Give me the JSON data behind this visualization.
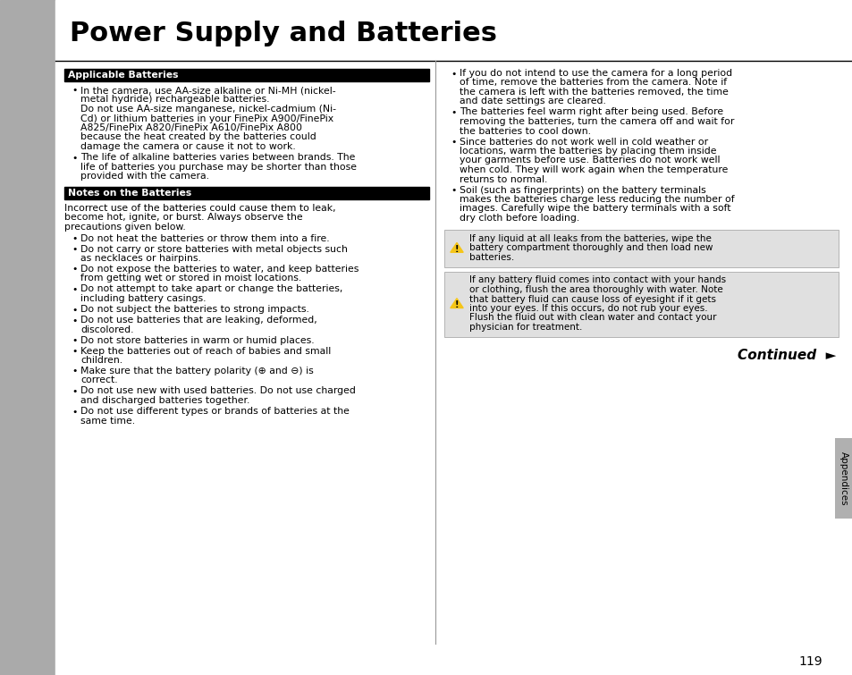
{
  "title": "Power Supply and Batteries",
  "page_number": "119",
  "bg_color": "#ffffff",
  "section1_header": "Applicable Batteries",
  "section2_header": "Notes on the Batteries",
  "tab_label": "Appendices",
  "section1_bullets": [
    "In the camera, use AA-size alkaline or Ni-MH (nickel-\nmetal hydride) rechargeable batteries.\nDo not use AA-size manganese, nickel-cadmium (Ni-\nCd) or lithium batteries in your FinePix A900/FinePix\nA825/FinePix A820/FinePix A610/FinePix A800\nbecause the heat created by the batteries could\ndamage the camera or cause it not to work.",
    "The life of alkaline batteries varies between brands. The\nlife of batteries you purchase may be shorter than those\nprovided with the camera."
  ],
  "section2_intro": "Incorrect use of the batteries could cause them to leak,\nbecome hot, ignite, or burst. Always observe the\nprecautions given below.",
  "section2_bullets": [
    "Do not heat the batteries or throw them into a fire.",
    "Do not carry or store batteries with metal objects such\nas necklaces or hairpins.",
    "Do not expose the batteries to water, and keep batteries\nfrom getting wet or stored in moist locations.",
    "Do not attempt to take apart or change the batteries,\nincluding battery casings.",
    "Do not subject the batteries to strong impacts.",
    "Do not use batteries that are leaking, deformed,\ndiscolored.",
    "Do not store batteries in warm or humid places.",
    "Keep the batteries out of reach of babies and small\nchildren.",
    "Make sure that the battery polarity (⊕ and ⊖) is\ncorrect.",
    "Do not use new with used batteries. Do not use charged\nand discharged batteries together.",
    "Do not use different types or brands of batteries at the\nsame time."
  ],
  "right_bullets": [
    "If you do not intend to use the camera for a long period\nof time, remove the batteries from the camera. Note if\nthe camera is left with the batteries removed, the time\nand date settings are cleared.",
    "The batteries feel warm right after being used. Before\nremoving the batteries, turn the camera off and wait for\nthe batteries to cool down.",
    "Since batteries do not work well in cold weather or\nlocations, warm the batteries by placing them inside\nyour garments before use. Batteries do not work well\nwhen cold. They will work again when the temperature\nreturns to normal.",
    "Soil (such as fingerprints) on the battery terminals\nmakes the batteries charge less reducing the number of\nimages. Carefully wipe the battery terminals with a soft\ndry cloth before loading."
  ],
  "warning1": "If any liquid at all leaks from the batteries, wipe the\nbattery compartment thoroughly and then load new\nbatteries.",
  "warning2": "If any battery fluid comes into contact with your hands\nor clothing, flush the area thoroughly with water. Note\nthat battery fluid can cause loss of eyesight if it gets\ninto your eyes. If this occurs, do not rub your eyes.\nFlush the fluid out with clean water and contact your\nphysician for treatment.",
  "continued_text": "Continued",
  "header_bg": "#000000",
  "header_text_color": "#ffffff",
  "warning_bg": "#e0e0e0",
  "left_bar_color": "#aaaaaa",
  "tab_color": "#b0b0b0",
  "divider_color": "#999999",
  "title_line_color": "#000000"
}
